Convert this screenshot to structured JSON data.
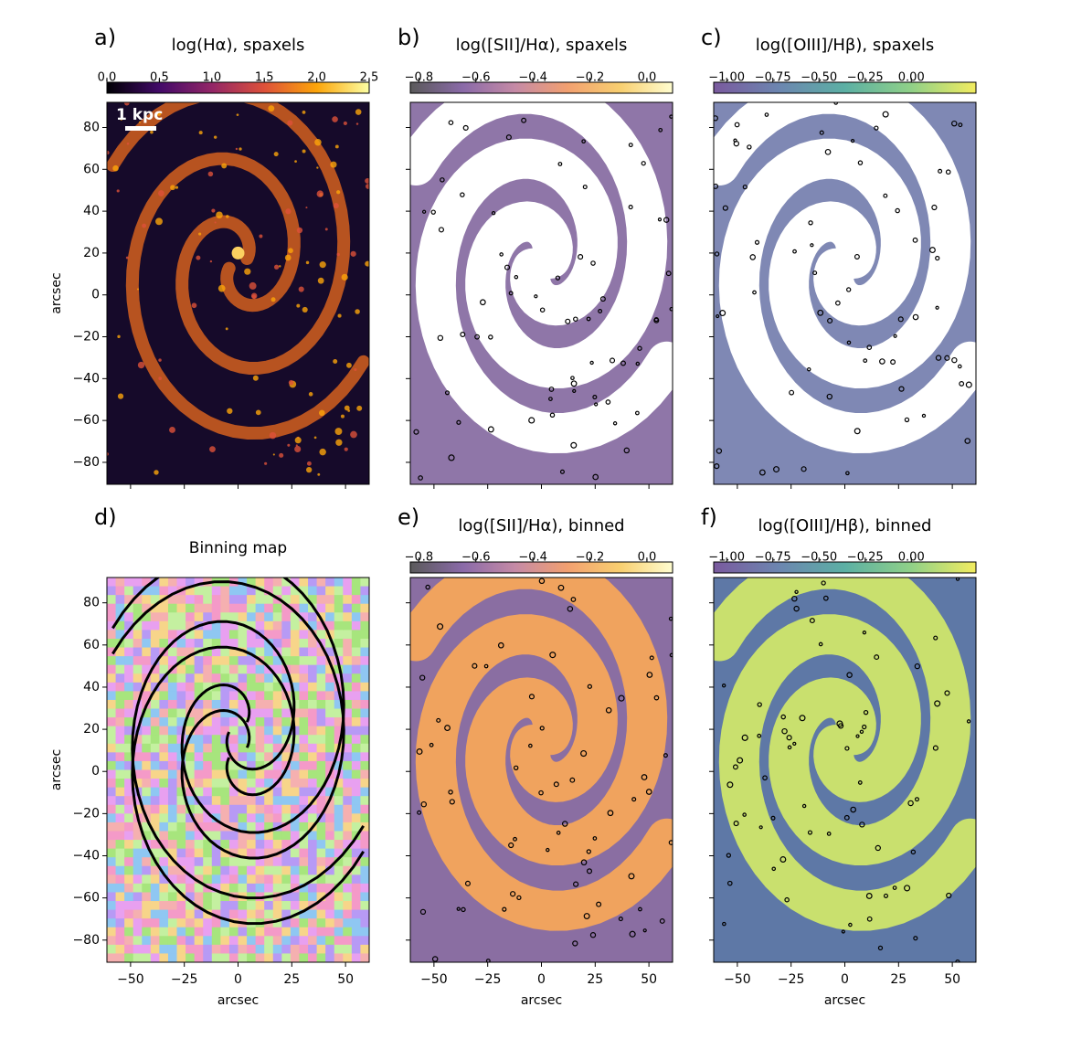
{
  "chart_data": [
    {
      "type": "image",
      "panel_label": "a)",
      "title": "log(Hα), spaxels",
      "annotation": "1 kpc",
      "colorbar": {
        "lim": [
          0,
          2.5
        ],
        "ticks": [
          {
            "value": 0,
            "label": "0.0"
          },
          {
            "value": 0.5,
            "label": "0.5"
          },
          {
            "value": 1,
            "label": "1.0"
          },
          {
            "value": 1.5,
            "label": "1.5"
          },
          {
            "value": 2,
            "label": "2.0"
          },
          {
            "value": 2.5,
            "label": "2.5"
          }
        ],
        "colors": [
          "#000004",
          "#420a68",
          "#932667",
          "#dd513a",
          "#fca50a",
          "#fcffa4"
        ]
      },
      "xlim": [
        -61,
        61
      ],
      "ylim": [
        -90.5,
        92
      ],
      "xticks": [
        -50,
        -25,
        0,
        25,
        50
      ],
      "show_xticklabels": false,
      "yticks": [
        {
          "value": -80,
          "label": "−80"
        },
        {
          "value": -60,
          "label": "−60"
        },
        {
          "value": -40,
          "label": "−40"
        },
        {
          "value": -20,
          "label": "−20"
        },
        0,
        20,
        40,
        60,
        80
      ],
      "show_yticklabels": true,
      "ylabel": "arcsec"
    },
    {
      "type": "image",
      "panel_label": "b)",
      "title": "log([SII]/Hα), spaxels",
      "colorbar": {
        "lim": [
          -0.83,
          0.09
        ],
        "ticks": [
          {
            "value": -0.8,
            "label": "−0.8"
          },
          {
            "value": -0.6,
            "label": "−0.6"
          },
          {
            "value": -0.4,
            "label": "−0.4"
          },
          {
            "value": -0.2,
            "label": "−0.2"
          },
          {
            "value": 0,
            "label": "0.0"
          }
        ],
        "colors": [
          "#5a5a5a",
          "#8a6aa8",
          "#c58aa6",
          "#f2a070",
          "#f8cf70",
          "#fffdd0"
        ]
      },
      "xlim": [
        -61,
        61
      ],
      "ylim": [
        -90.5,
        92
      ],
      "xticks": [
        -50,
        -25,
        0,
        25,
        50
      ],
      "show_xticklabels": false,
      "yticks": [
        -80,
        -60,
        -40,
        -20,
        0,
        20,
        40,
        60,
        80
      ],
      "show_yticklabels": false
    },
    {
      "type": "image",
      "panel_label": "c)",
      "title": "log([OIII]/Hβ), spaxels",
      "colorbar": {
        "lim": [
          -1.07,
          0.35
        ],
        "ticks": [
          {
            "value": -1,
            "label": "−1.00"
          },
          {
            "value": -0.75,
            "label": "−0.75"
          },
          {
            "value": -0.5,
            "label": "−0.50"
          },
          {
            "value": -0.25,
            "label": "−0.25"
          },
          {
            "value": 0,
            "label": "0.00"
          }
        ],
        "colors": [
          "#7a5a9e",
          "#6c86b0",
          "#5cb0a4",
          "#8fd088",
          "#f2ec60"
        ]
      },
      "xlim": [
        -61,
        61
      ],
      "ylim": [
        -90.5,
        92
      ],
      "xticks": [
        -50,
        -25,
        0,
        25,
        50
      ],
      "show_xticklabels": false,
      "yticks": [
        -80,
        -60,
        -40,
        -20,
        0,
        20,
        40,
        60,
        80
      ],
      "show_yticklabels": false
    },
    {
      "type": "image",
      "panel_label": "d)",
      "title": "Binning map",
      "xlim": [
        -61,
        61
      ],
      "ylim": [
        -90.5,
        92
      ],
      "xticks": [
        {
          "value": -50,
          "label": "−50"
        },
        {
          "value": -25,
          "label": "−25"
        },
        0,
        25,
        50
      ],
      "show_xticklabels": true,
      "xlabel": "arcsec",
      "yticks": [
        {
          "value": -80,
          "label": "−80"
        },
        {
          "value": -60,
          "label": "−60"
        },
        {
          "value": -40,
          "label": "−40"
        },
        {
          "value": -20,
          "label": "−20"
        },
        0,
        20,
        40,
        60,
        80
      ],
      "show_yticklabels": true,
      "ylabel": "arcsec"
    },
    {
      "type": "image",
      "panel_label": "e)",
      "title": "log([SII]/Hα), binned",
      "colorbar": {
        "lim": [
          -0.83,
          0.09
        ],
        "ticks": [
          {
            "value": -0.8,
            "label": "−0.8"
          },
          {
            "value": -0.6,
            "label": "−0.6"
          },
          {
            "value": -0.4,
            "label": "−0.4"
          },
          {
            "value": -0.2,
            "label": "−0.2"
          },
          {
            "value": 0,
            "label": "0.0"
          }
        ],
        "colors": [
          "#5a5a5a",
          "#8a6aa8",
          "#c58aa6",
          "#f2a070",
          "#f8cf70",
          "#fffdd0"
        ]
      },
      "xlim": [
        -61,
        61
      ],
      "ylim": [
        -90.5,
        92
      ],
      "xticks": [
        {
          "value": -50,
          "label": "−50"
        },
        {
          "value": -25,
          "label": "−25"
        },
        0,
        25,
        50
      ],
      "show_xticklabels": true,
      "xlabel": "arcsec",
      "yticks": [
        -80,
        -60,
        -40,
        -20,
        0,
        20,
        40,
        60,
        80
      ],
      "show_yticklabels": false
    },
    {
      "type": "image",
      "panel_label": "f)",
      "title": "log([OIII]/Hβ), binned",
      "colorbar": {
        "lim": [
          -1.07,
          0.35
        ],
        "ticks": [
          {
            "value": -1,
            "label": "−1.00"
          },
          {
            "value": -0.75,
            "label": "−0.75"
          },
          {
            "value": -0.5,
            "label": "−0.50"
          },
          {
            "value": -0.25,
            "label": "−0.25"
          },
          {
            "value": 0,
            "label": "0.00"
          }
        ],
        "colors": [
          "#7a5a9e",
          "#6c86b0",
          "#5cb0a4",
          "#8fd088",
          "#f2ec60"
        ]
      },
      "xlim": [
        -61,
        61
      ],
      "ylim": [
        -90.5,
        92
      ],
      "xticks": [
        {
          "value": -50,
          "label": "−50"
        },
        {
          "value": -25,
          "label": "−25"
        },
        0,
        25,
        50
      ],
      "show_xticklabels": true,
      "xlabel": "arcsec",
      "yticks": [
        -80,
        -60,
        -40,
        -20,
        0,
        20,
        40,
        60,
        80
      ],
      "show_yticklabels": false
    }
  ]
}
